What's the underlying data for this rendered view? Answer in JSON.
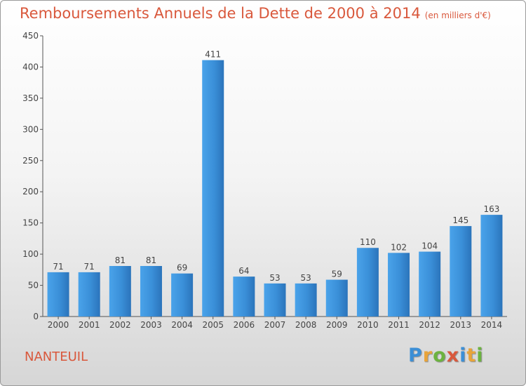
{
  "chart_data": {
    "type": "bar",
    "title": "Remboursements Annuels de la Dette de 2000 à 2014",
    "subtitle": "(en milliers d'€)",
    "categories": [
      "2000",
      "2001",
      "2002",
      "2003",
      "2004",
      "2005",
      "2006",
      "2007",
      "2008",
      "2009",
      "2010",
      "2011",
      "2012",
      "2013",
      "2014"
    ],
    "values": [
      71,
      71,
      81,
      81,
      69,
      411,
      64,
      53,
      53,
      59,
      110,
      102,
      104,
      145,
      163
    ],
    "ylim": [
      0,
      450
    ],
    "yticks": [
      0,
      50,
      100,
      150,
      200,
      250,
      300,
      350,
      400,
      450
    ],
    "grid": false,
    "bar_color": "#3a8fd8"
  },
  "footer": {
    "city": "NANTEUIL",
    "logo": [
      "P",
      "r",
      "o",
      "x",
      "i",
      "t",
      "i"
    ],
    "logo_colors": [
      "#3c8fd6",
      "#e8a43a",
      "#6cb33f",
      "#d9583c",
      "#3c8fd6",
      "#e8a43a",
      "#6cb33f"
    ]
  }
}
